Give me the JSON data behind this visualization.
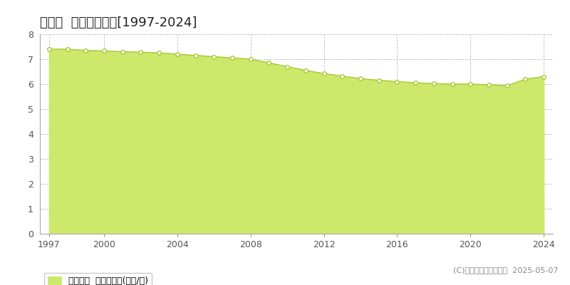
{
  "title": "門川町  基準地価推移[1997-2024]",
  "years": [
    1997,
    1998,
    1999,
    2000,
    2001,
    2002,
    2003,
    2004,
    2005,
    2006,
    2007,
    2008,
    2009,
    2010,
    2011,
    2012,
    2013,
    2014,
    2015,
    2016,
    2017,
    2018,
    2019,
    2020,
    2021,
    2022,
    2023,
    2024
  ],
  "values": [
    7.4,
    7.4,
    7.35,
    7.33,
    7.3,
    7.28,
    7.25,
    7.2,
    7.15,
    7.1,
    7.05,
    7.0,
    6.85,
    6.7,
    6.55,
    6.42,
    6.32,
    6.22,
    6.15,
    6.1,
    6.05,
    6.02,
    6.0,
    6.0,
    5.97,
    5.93,
    6.2,
    6.3
  ],
  "line_color": "#a8c832",
  "fill_color": "#cde86a",
  "fill_alpha": 1.0,
  "marker_color": "white",
  "marker_edge_color": "#a8c832",
  "bg_color": "#ffffff",
  "plot_bg_color": "#f5f5f5",
  "grid_color": "#bbbbbb",
  "ylim": [
    0,
    8
  ],
  "yticks": [
    0,
    1,
    2,
    3,
    4,
    5,
    6,
    7,
    8
  ],
  "xticks": [
    1997,
    2000,
    2004,
    2008,
    2012,
    2016,
    2020,
    2024
  ],
  "xlim": [
    1996.5,
    2024.5
  ],
  "legend_label": "基準地価  平均坪単価(万円/坪)",
  "copyright_text": "(C)土地価格ドットコム  2025-05-07",
  "title_fontsize": 13,
  "axis_fontsize": 9,
  "legend_fontsize": 9,
  "copyright_fontsize": 8
}
